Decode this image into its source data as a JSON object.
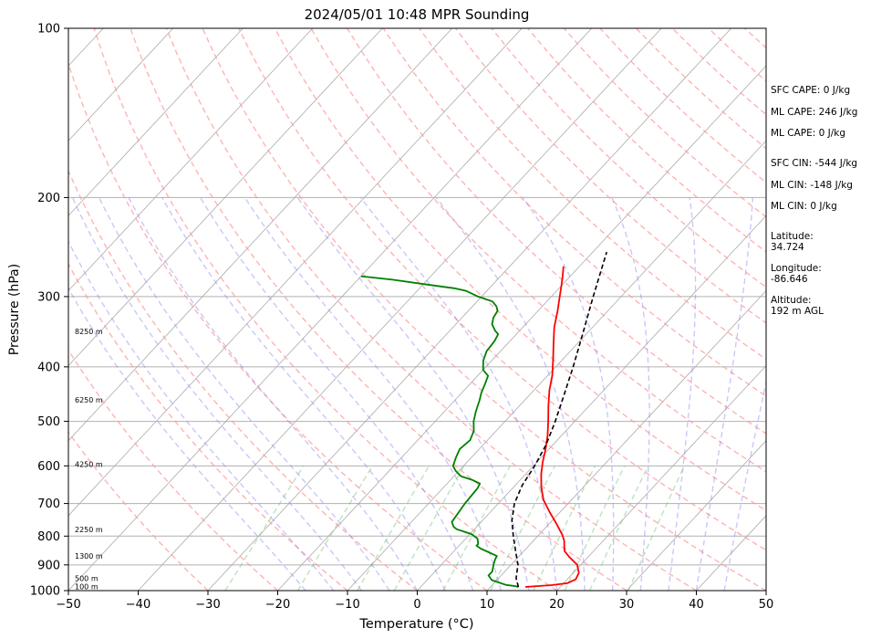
{
  "chart_data": {
    "type": "line",
    "title": "2024/05/01 10:48 MPR Sounding",
    "xlabel": "Temperature (°C)",
    "ylabel": "Pressure (hPa)",
    "xlim": [
      -50,
      50
    ],
    "ylim": [
      1000,
      100
    ],
    "y_scale": "log",
    "x_ticks": [
      -50,
      -40,
      -30,
      -20,
      -10,
      0,
      10,
      20,
      30,
      40,
      50
    ],
    "x_tick_labels": [
      "−50",
      "−40",
      "−30",
      "−20",
      "−10",
      "0",
      "10",
      "20",
      "30",
      "40",
      "50"
    ],
    "y_ticks": [
      1000,
      900,
      800,
      700,
      600,
      500,
      400,
      300,
      200,
      100
    ],
    "y_tick_labels": [
      "1000",
      "900",
      "800",
      "700",
      "600",
      "500",
      "400",
      "300",
      "200",
      "100"
    ],
    "grid": true,
    "height_labels": [
      {
        "text": "100 m",
        "p": 983
      },
      {
        "text": "500 m",
        "p": 950
      },
      {
        "text": "1300 m",
        "p": 868
      },
      {
        "text": "2250 m",
        "p": 778
      },
      {
        "text": "4250 m",
        "p": 596
      },
      {
        "text": "6250 m",
        "p": 458
      },
      {
        "text": "8250 m",
        "p": 346
      }
    ],
    "series": [
      {
        "color": "#ff0000",
        "points": [
          [
            15,
            985
          ],
          [
            16.5,
            982
          ],
          [
            18.5,
            978
          ],
          [
            20.5,
            970
          ],
          [
            21.2,
            955
          ],
          [
            20.8,
            930
          ],
          [
            19.5,
            900
          ],
          [
            17.2,
            870
          ],
          [
            15.8,
            850
          ],
          [
            15,
            830
          ],
          [
            14.4,
            815
          ],
          [
            13.3,
            795
          ],
          [
            11,
            760
          ],
          [
            8.5,
            725
          ],
          [
            6,
            690
          ],
          [
            4,
            655
          ],
          [
            2.2,
            620
          ],
          [
            0.8,
            590
          ],
          [
            -0.5,
            560
          ],
          [
            -2,
            530
          ],
          [
            -3.8,
            500
          ],
          [
            -5.8,
            470
          ],
          [
            -7.8,
            440
          ],
          [
            -9.3,
            415
          ],
          [
            -11.2,
            390
          ],
          [
            -13.3,
            365
          ],
          [
            -15.5,
            340
          ],
          [
            -17.2,
            318
          ],
          [
            -18.8,
            300
          ],
          [
            -20.2,
            285
          ],
          [
            -21.2,
            275
          ],
          [
            -22.3,
            265
          ]
        ]
      },
      {
        "color": "#008000",
        "points": [
          [
            14,
            985
          ],
          [
            13.5,
            982
          ],
          [
            12,
            977
          ],
          [
            11,
            970
          ],
          [
            9.3,
            958
          ],
          [
            8.2,
            940
          ],
          [
            8.2,
            925
          ],
          [
            7.5,
            900
          ],
          [
            7,
            880
          ],
          [
            6.8,
            868
          ],
          [
            3.5,
            842
          ],
          [
            2.5,
            832
          ],
          [
            2.5,
            826
          ],
          [
            1.7,
            808
          ],
          [
            0.2,
            793
          ],
          [
            -2.5,
            778
          ],
          [
            -3.3,
            770
          ],
          [
            -4.2,
            755
          ],
          [
            -4.8,
            700
          ],
          [
            -5,
            658
          ],
          [
            -5.3,
            645
          ],
          [
            -6.8,
            636
          ],
          [
            -9,
            626
          ],
          [
            -10.5,
            612
          ],
          [
            -11.5,
            600
          ],
          [
            -12.2,
            580
          ],
          [
            -12.8,
            560
          ],
          [
            -12.5,
            540
          ],
          [
            -13.2,
            520
          ],
          [
            -14.5,
            500
          ],
          [
            -15.5,
            480
          ],
          [
            -16.5,
            458
          ],
          [
            -17.2,
            445
          ],
          [
            -17.8,
            430
          ],
          [
            -18.5,
            415
          ],
          [
            -20,
            405
          ],
          [
            -21.2,
            390
          ],
          [
            -22,
            375
          ],
          [
            -22.2,
            360
          ],
          [
            -22.6,
            350
          ],
          [
            -23.5,
            345
          ],
          [
            -24.8,
            336
          ],
          [
            -25.5,
            327
          ],
          [
            -25.8,
            318
          ],
          [
            -26.6,
            312
          ],
          [
            -27.8,
            306
          ],
          [
            -30.5,
            300
          ],
          [
            -33,
            293
          ],
          [
            -35,
            290
          ],
          [
            -40,
            285
          ],
          [
            -45,
            280
          ],
          [
            -50,
            276
          ]
        ]
      },
      {
        "color": "#000000",
        "dashed": true,
        "points": [
          [
            14,
            985
          ],
          [
            12.5,
            950
          ],
          [
            11,
            900
          ],
          [
            8.8,
            850
          ],
          [
            6.5,
            800
          ],
          [
            4.2,
            750
          ],
          [
            2.3,
            700
          ],
          [
            1,
            650
          ],
          [
            0.2,
            600
          ],
          [
            -1,
            550
          ],
          [
            -2.8,
            500
          ],
          [
            -5,
            450
          ],
          [
            -7.5,
            400
          ],
          [
            -10.5,
            350
          ],
          [
            -14,
            300
          ],
          [
            -18,
            250
          ]
        ]
      }
    ]
  },
  "side_panel": {
    "sfc_cape": "SFC CAPE: 0 J/kg",
    "ml_cape_1": "ML CAPE: 246 J/kg",
    "ml_cape_2": "ML CAPE: 0 J/kg",
    "sfc_cin": "SFC CIN: -544 J/kg",
    "ml_cin_1": "ML CIN: -148 J/kg",
    "ml_cin_2": "ML CIN: 0 J/kg",
    "latitude_label": "Latitude:",
    "latitude_value": "34.724",
    "longitude_label": "Longitude:",
    "longitude_value": "-86.646",
    "altitude_label": "Altitude:",
    "altitude_value": "192 m AGL"
  }
}
